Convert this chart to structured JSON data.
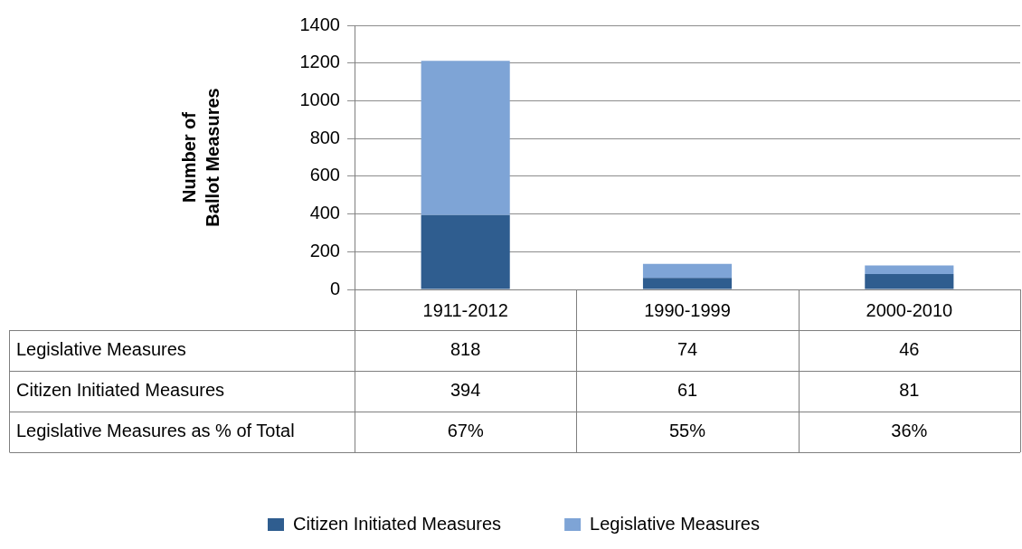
{
  "chart_data": {
    "type": "bar",
    "stacked": true,
    "categories": [
      "1911-2012",
      "1990-1999",
      "2000-2010"
    ],
    "series": [
      {
        "name": "Citizen Initiated Measures",
        "color": "#2f5d8f",
        "values": [
          394,
          61,
          81
        ]
      },
      {
        "name": "Legislative Measures",
        "color": "#7ea4d6",
        "values": [
          818,
          74,
          46
        ]
      }
    ],
    "ylabel": "Number of Ballot Measures",
    "ylim": [
      0,
      1400
    ],
    "yticks": [
      0,
      200,
      400,
      600,
      800,
      1000,
      1200,
      1400
    ],
    "grid": "y",
    "legend": "bottom",
    "data_labels": true,
    "annotations": [
      "Legislative Measures as % of Total",
      "67%",
      "55%",
      "36%"
    ]
  }
}
